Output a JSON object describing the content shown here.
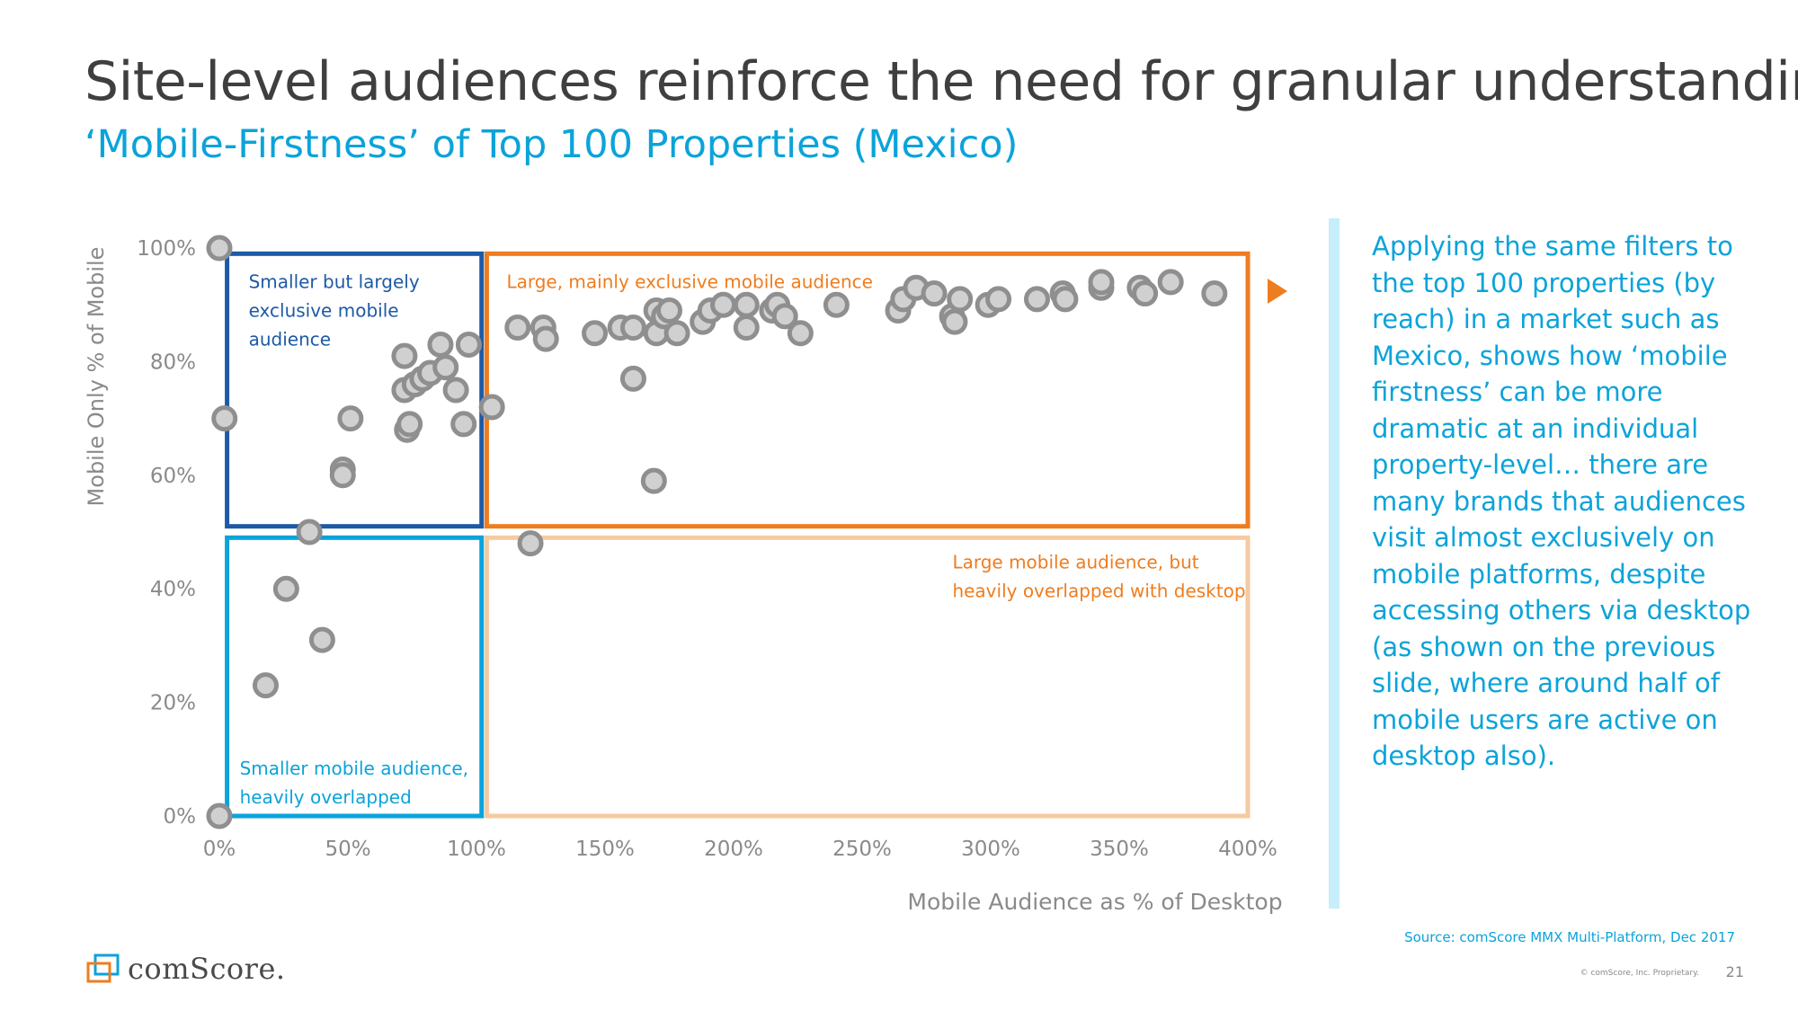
{
  "slide": {
    "title": "Site-level audiences reinforce the need for granular understanding",
    "subtitle": "‘Mobile-Firstness’ of Top 100 Properties (Mexico)",
    "side_text": "Applying the same filters to the top 100 properties (by reach) in a market such as Mexico, shows how ‘mobile firstness’ can be more dramatic at an individual property-level… there are many brands that audiences visit almost exclusively on mobile platforms, despite accessing others via desktop (as shown on the previous slide, where around half of mobile users are active on desktop also).",
    "source": "Source: comScore MMX Multi-Platform, Dec 2017",
    "copyright": "© comScore, Inc. Proprietary.",
    "page_number": "21",
    "logo_text": "comScore."
  },
  "colors": {
    "title": "#3f3f3f",
    "accent_blue": "#0ba3da",
    "dark_blue": "#1d5aa6",
    "orange": "#ee7d1f",
    "light_orange": "#f6caa0",
    "marker_fill": "#d0d0d0",
    "marker_stroke": "#8f8f8f",
    "divider": "#c6eefb"
  },
  "chart_data": {
    "type": "scatter",
    "xlabel": "Mobile Audience as % of Desktop",
    "ylabel": "Mobile Only % of Mobile",
    "xlim": [
      0,
      400
    ],
    "ylim": [
      0,
      100
    ],
    "x_ticks": [
      0,
      50,
      100,
      150,
      200,
      250,
      300,
      350,
      400
    ],
    "x_tick_labels": [
      "0%",
      "50%",
      "100%",
      "150%",
      "200%",
      "250%",
      "300%",
      "350%",
      "400%"
    ],
    "y_ticks": [
      0,
      20,
      40,
      60,
      80,
      100
    ],
    "y_tick_labels": [
      "0%",
      "20%",
      "40%",
      "60%",
      "80%",
      "100%"
    ],
    "grid": false,
    "quadrants": [
      {
        "label": "Smaller but largely exclusive mobile audience",
        "lines": [
          "Smaller but largely",
          "exclusive mobile",
          "audience"
        ],
        "x_range": [
          3,
          102
        ],
        "y_range": [
          51,
          99
        ],
        "color": "#1d5aa6",
        "label_color": "#1d5aa6"
      },
      {
        "label": "Large, mainly exclusive mobile audience",
        "lines": [
          "Large, mainly exclusive mobile audience"
        ],
        "x_range": [
          104,
          400
        ],
        "y_range": [
          51,
          99
        ],
        "color": "#ee7d1f",
        "label_color": "#ee7d1f"
      },
      {
        "label": "Smaller mobile audience, heavily overlapped",
        "lines": [
          "Smaller mobile audience,",
          "heavily overlapped"
        ],
        "x_range": [
          3,
          102
        ],
        "y_range": [
          0,
          49
        ],
        "color": "#0ba3da",
        "label_color": "#0ba3da"
      },
      {
        "label": "Large mobile audience, but heavily overlapped with desktop",
        "lines": [
          "Large mobile audience, but",
          "heavily overlapped with desktop"
        ],
        "x_range": [
          104,
          400
        ],
        "y_range": [
          0,
          49
        ],
        "color": "#f6caa0",
        "label_color": "#ee7d1f"
      }
    ],
    "series": [
      {
        "x": [
          0,
          2,
          0,
          18,
          26,
          35,
          40,
          48,
          48,
          51,
          72,
          72,
          73,
          74,
          76,
          79,
          82,
          86,
          88,
          92,
          95,
          97,
          106,
          116,
          121,
          126,
          127,
          146,
          156,
          161,
          161,
          169,
          170,
          170,
          173,
          175,
          178,
          188,
          191,
          196,
          205,
          205,
          215,
          217,
          220,
          226,
          240,
          264,
          266,
          271,
          278,
          285,
          286,
          288,
          299,
          303,
          318,
          328,
          329,
          343,
          343,
          358,
          360,
          370,
          387
        ],
        "y": [
          100,
          70,
          0,
          23,
          40,
          50,
          31,
          61,
          60,
          70,
          81,
          75,
          68,
          69,
          76,
          77,
          78,
          83,
          79,
          75,
          69,
          83,
          72,
          86,
          48,
          86,
          84,
          85,
          86,
          77,
          86,
          59,
          89,
          85,
          88,
          89,
          85,
          87,
          89,
          90,
          86,
          90,
          89,
          90,
          88,
          85,
          90,
          89,
          91,
          93,
          92,
          88,
          87,
          91,
          90,
          91,
          91,
          92,
          91,
          93,
          94,
          93,
          92,
          94,
          92
        ]
      }
    ],
    "annotation_arrow": "right-arrow marker beside the top-right cluster"
  }
}
